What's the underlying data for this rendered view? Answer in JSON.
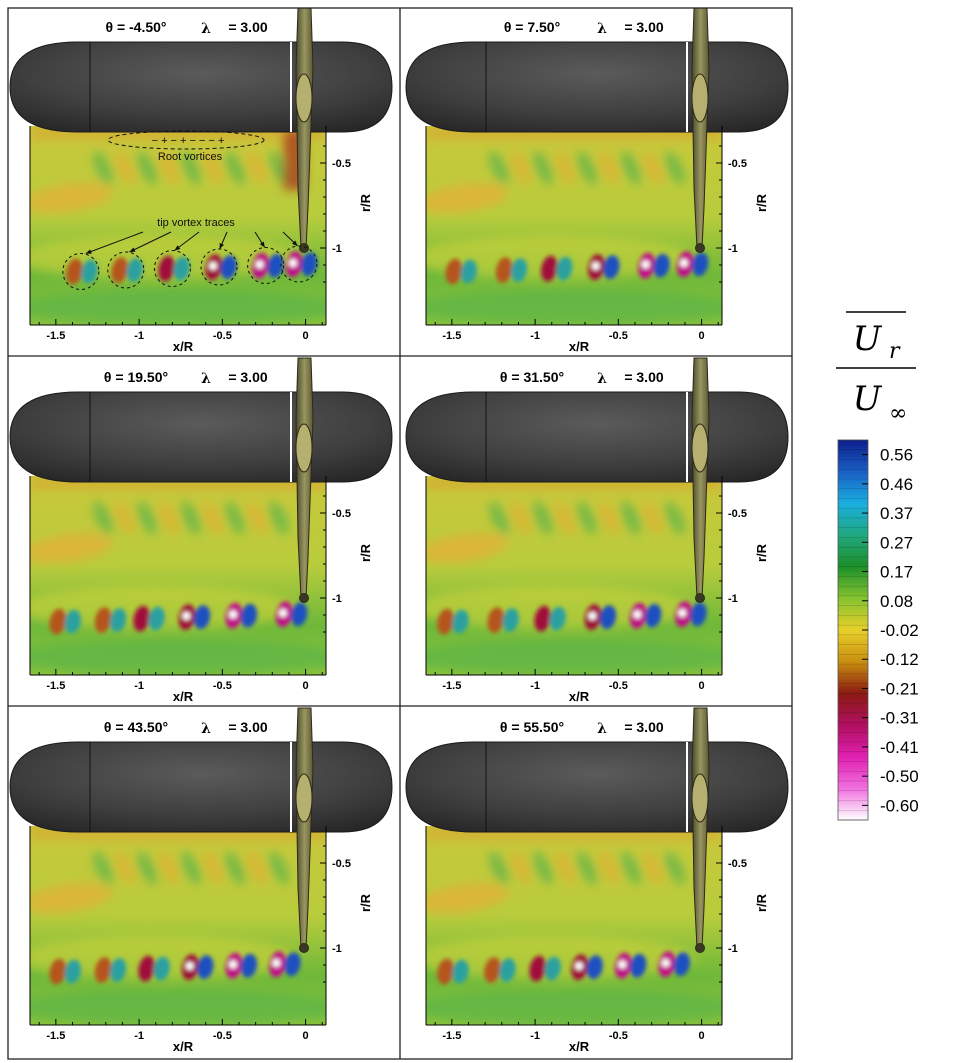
{
  "figure": {
    "panels": [
      {
        "theta_label": "θ = -4.50°",
        "lambda_label": "λ",
        "lambda_value": "= 3.00"
      },
      {
        "theta_label": "θ = 7.50°",
        "lambda_label": "λ",
        "lambda_value": "= 3.00"
      },
      {
        "theta_label": "θ = 19.50°",
        "lambda_label": "λ",
        "lambda_value": "= 3.00"
      },
      {
        "theta_label": "θ = 31.50°",
        "lambda_label": "λ",
        "lambda_value": "= 3.00"
      },
      {
        "theta_label": "θ = 43.50°",
        "lambda_label": "λ",
        "lambda_value": "= 3.00"
      },
      {
        "theta_label": "θ = 55.50°",
        "lambda_label": "λ",
        "lambda_value": "= 3.00"
      }
    ],
    "annotations": {
      "root_vortices": "Root vortices",
      "root_signs": "− + − + − − − +",
      "tip_vortex": "tip vortex traces"
    },
    "colorbar": {
      "numerator": "U",
      "numerator_sub": "r",
      "denominator": "U",
      "denominator_sub": "∞",
      "levels": [
        "0.56",
        "0.46",
        "0.37",
        "0.27",
        "0.17",
        "0.08",
        "-0.02",
        "-0.12",
        "-0.21",
        "-0.31",
        "-0.41",
        "-0.50",
        "-0.60"
      ],
      "colors": [
        "#0c1e8a",
        "#1a5fc4",
        "#1aaee0",
        "#20a880",
        "#1c8f2a",
        "#86c330",
        "#e8d02a",
        "#c89010",
        "#8a1a12",
        "#b01060",
        "#e020b0",
        "#f070e0",
        "#ffffff"
      ]
    }
  },
  "chart_data": {
    "type": "heatmap",
    "quantity": "U_r / U_∞",
    "lambda": 3.0,
    "theta_deg": [
      -4.5,
      7.5,
      19.5,
      31.5,
      43.5,
      55.5
    ],
    "xlabel": "x/R",
    "ylabel": "r/R",
    "x_ticks": [
      -1.5,
      -1,
      -0.5,
      0
    ],
    "y_ticks": [
      -0.5,
      -1
    ],
    "xlim": [
      -1.65,
      0.1
    ],
    "ylim": [
      -1.25,
      -0.35
    ],
    "tip_vortex_x": [
      [
        -1.35,
        -1.08,
        -0.8,
        -0.52,
        -0.24,
        -0.04
      ],
      [
        -1.45,
        -1.15,
        -0.88,
        -0.6,
        -0.3,
        -0.07
      ],
      [
        -1.45,
        -1.18,
        -0.95,
        -0.68,
        -0.4,
        -0.1
      ],
      [
        -1.5,
        -1.2,
        -0.92,
        -0.62,
        -0.35,
        -0.08
      ],
      [
        -1.45,
        -1.18,
        -0.92,
        -0.66,
        -0.4,
        -0.14
      ],
      [
        -1.5,
        -1.22,
        -0.95,
        -0.7,
        -0.44,
        -0.18
      ]
    ],
    "tip_vortex_r": -1.05,
    "colorbar_levels": [
      0.56,
      0.46,
      0.37,
      0.27,
      0.17,
      0.08,
      -0.02,
      -0.12,
      -0.21,
      -0.31,
      -0.41,
      -0.5,
      -0.6
    ]
  }
}
